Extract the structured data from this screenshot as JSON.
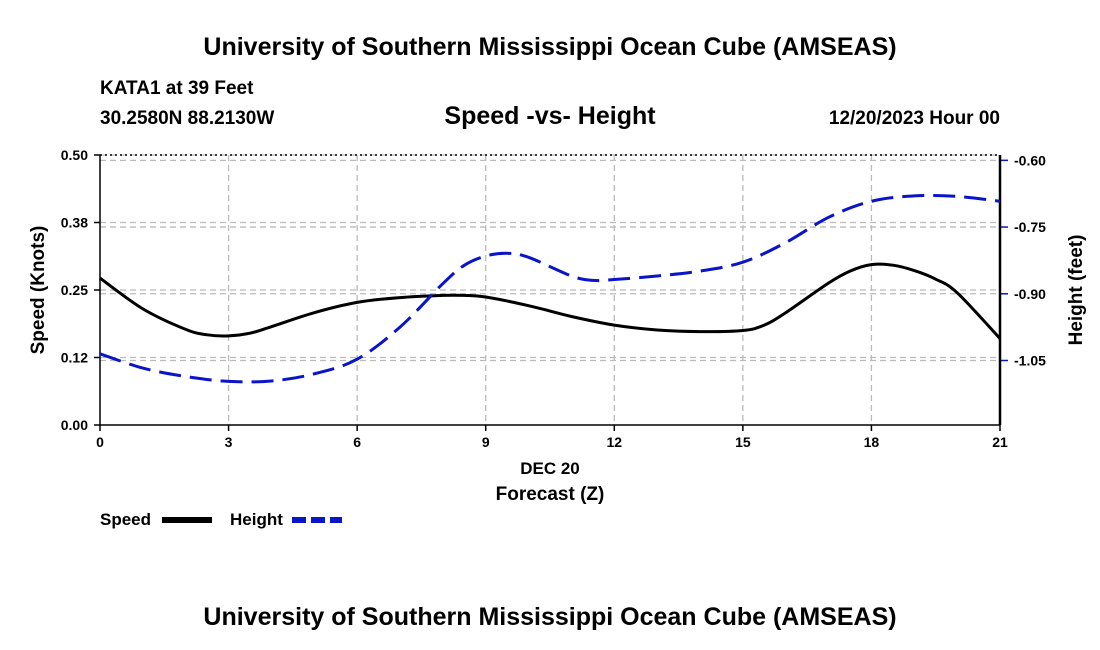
{
  "header": {
    "title": "University of Southern Mississippi Ocean Cube (AMSEAS)",
    "station": "KATA1 at 39 Feet",
    "coords": "30.2580N  88.2130W",
    "chart_title": "Speed -vs- Height",
    "datetime": "12/20/2023 Hour 00"
  },
  "footer": {
    "title": "University of Southern Mississippi Ocean Cube (AMSEAS)"
  },
  "colors": {
    "speed": "#000000",
    "height": "#0a14c8",
    "grid": "#bbbbbb"
  },
  "chart_data": {
    "type": "line",
    "title": "Speed -vs- Height",
    "xlabel": "Forecast (Z)",
    "xsublabel": "DEC 20",
    "ylabel": "Speed (Knots)",
    "y2label": "Height (feet)",
    "xlim": [
      0,
      21
    ],
    "ylim": [
      0,
      0.5
    ],
    "y2lim": [
      -1.195,
      -0.588
    ],
    "xticks": [
      0,
      3,
      6,
      9,
      12,
      15,
      18,
      21
    ],
    "xtick_labels": [
      "0",
      "3",
      "6",
      "9",
      "12",
      "15",
      "18",
      "21"
    ],
    "yticks": [
      0.0,
      0.125,
      0.25,
      0.375,
      0.5
    ],
    "ytick_labels": [
      "0.00",
      "0.12",
      "0.25",
      "0.38",
      "0.50"
    ],
    "y2ticks": [
      -0.6,
      -0.75,
      -0.9,
      -1.05
    ],
    "y2tick_labels": [
      "-0.60",
      "-0.75",
      "-0.90",
      "-1.05"
    ],
    "grid": true,
    "legend": {
      "placement": "bottom-left",
      "items": [
        {
          "label": "Speed",
          "series": "speed"
        },
        {
          "label": "Height",
          "series": "height"
        }
      ]
    },
    "series": [
      {
        "name": "Speed",
        "axis": "left",
        "style": "solid",
        "x": [
          0,
          1,
          2,
          2.5,
          3,
          3.5,
          4,
          5,
          6,
          7,
          8,
          8.5,
          9,
          10,
          11,
          12,
          13,
          14,
          15,
          15.5,
          16,
          17,
          17.5,
          18,
          18.5,
          19,
          19.5,
          20,
          21
        ],
        "values": [
          0.272,
          0.215,
          0.177,
          0.167,
          0.165,
          0.17,
          0.182,
          0.208,
          0.227,
          0.236,
          0.24,
          0.24,
          0.237,
          0.221,
          0.201,
          0.185,
          0.176,
          0.173,
          0.175,
          0.185,
          0.208,
          0.263,
          0.285,
          0.297,
          0.296,
          0.286,
          0.27,
          0.245,
          0.16
        ]
      },
      {
        "name": "Height",
        "axis": "right",
        "style": "dashed",
        "x": [
          0,
          1,
          2,
          3,
          4,
          5,
          6,
          7,
          8,
          8.5,
          9,
          9.5,
          10,
          11,
          11.5,
          12,
          13,
          14,
          15,
          16,
          17,
          18,
          19,
          20,
          21
        ],
        "values": [
          -1.035,
          -1.067,
          -1.086,
          -1.097,
          -1.096,
          -1.08,
          -1.047,
          -0.975,
          -0.877,
          -0.836,
          -0.815,
          -0.809,
          -0.818,
          -0.86,
          -0.87,
          -0.868,
          -0.86,
          -0.849,
          -0.829,
          -0.785,
          -0.728,
          -0.692,
          -0.68,
          -0.681,
          -0.692
        ]
      }
    ]
  }
}
